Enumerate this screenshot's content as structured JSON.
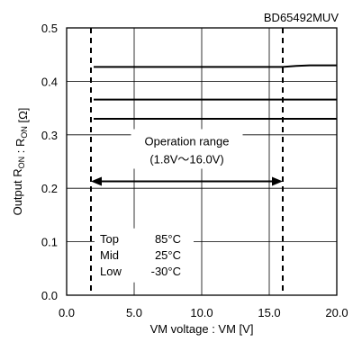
{
  "chart_data": {
    "type": "line",
    "title": "BD65492MUV",
    "xlabel": "VM voltage : VM [V]",
    "ylabel": "Output RON : RON [Ω]",
    "xlim": [
      0,
      20
    ],
    "ylim": [
      0,
      0.5
    ],
    "x_ticks": [
      "0.0",
      "5.0",
      "10.0",
      "15.0",
      "20.0"
    ],
    "y_ticks": [
      "0.0",
      "0.1",
      "0.2",
      "0.3",
      "0.4",
      "0.5"
    ],
    "grid": true,
    "series": [
      {
        "name": "Top 85°C",
        "x": [
          2,
          5,
          10,
          15,
          16,
          17,
          18,
          20
        ],
        "y": [
          0.427,
          0.427,
          0.427,
          0.427,
          0.427,
          0.429,
          0.43,
          0.43
        ]
      },
      {
        "name": "Mid 25°C",
        "x": [
          2,
          20
        ],
        "y": [
          0.366,
          0.366
        ]
      },
      {
        "name": "Low -30°C",
        "x": [
          2,
          20
        ],
        "y": [
          0.33,
          0.33
        ]
      }
    ],
    "operation_range": {
      "label_line1": "Operation range",
      "label_line2": "(1.8V～16.0V)",
      "x_min": 1.8,
      "x_max": 16.0,
      "arrow_y": 0.213
    },
    "legend": {
      "position": "bottom-left",
      "entries": [
        {
          "label": "Top",
          "temp": "85°C"
        },
        {
          "label": "Mid",
          "temp": "25°C"
        },
        {
          "label": "Low",
          "temp": "-30°C"
        }
      ]
    }
  }
}
